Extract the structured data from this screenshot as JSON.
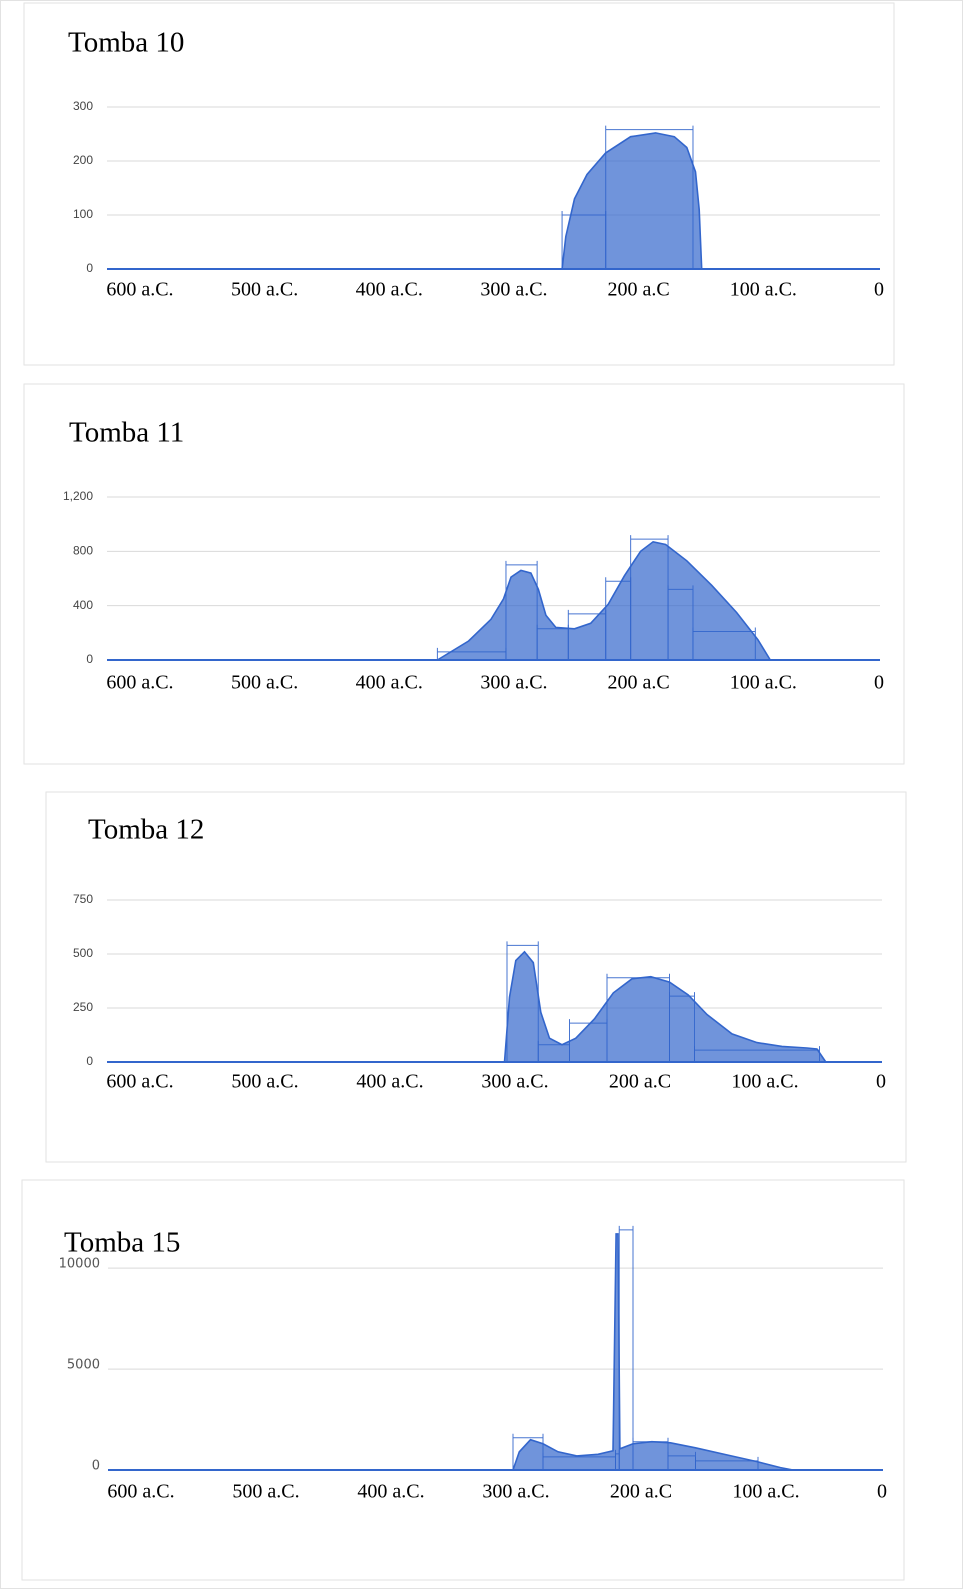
{
  "chart_data": [
    {
      "type": "area",
      "title": "Tomba 10",
      "xlim": [
        -620,
        0
      ],
      "xticks": [
        {
          "value": -600,
          "label": "600 a.C."
        },
        {
          "value": -500,
          "label": "500 a.C."
        },
        {
          "value": -400,
          "label": "400 a.C."
        },
        {
          "value": -300,
          "label": "300 a.C."
        },
        {
          "value": -200,
          "label": "200 a.C"
        },
        {
          "value": -100,
          "label": "100 a.C."
        },
        0
      ],
      "ylim": [
        0,
        300
      ],
      "yticks": [
        0,
        100,
        200,
        300
      ],
      "grid": true,
      "series": [
        {
          "color": "#3366cc",
          "x": [
            -255,
            -252,
            -245,
            -235,
            -220,
            -200,
            -180,
            -165,
            -155,
            -148,
            -145,
            -143
          ],
          "values": [
            0,
            60,
            130,
            175,
            215,
            245,
            252,
            245,
            225,
            180,
            110,
            0
          ]
        }
      ],
      "steps": {
        "bins": [
          -255,
          -220,
          -150
        ],
        "values": [
          100,
          258
        ]
      }
    },
    {
      "type": "area",
      "title": "Tomba 11",
      "xlim": [
        -620,
        0
      ],
      "xticks": [
        {
          "value": -600,
          "label": "600 a.C."
        },
        {
          "value": -500,
          "label": "500 a.C."
        },
        {
          "value": -400,
          "label": "400 a.C."
        },
        {
          "value": -300,
          "label": "300 a.C."
        },
        {
          "value": -200,
          "label": "200 a.C"
        },
        {
          "value": -100,
          "label": "100 a.C."
        },
        0
      ],
      "ylim": [
        0,
        1200
      ],
      "yticks": [
        0,
        400,
        800,
        {
          "value": 1200,
          "label": "1,200"
        }
      ],
      "grid": true,
      "series": [
        {
          "color": "#3366cc",
          "x": [
            -355,
            -330,
            -312,
            -302,
            -296,
            -288,
            -280,
            -274,
            -268,
            -260,
            -245,
            -232,
            -218,
            -205,
            -192,
            -182,
            -172,
            -155,
            -135,
            -115,
            -98,
            -88
          ],
          "values": [
            0,
            140,
            300,
            450,
            610,
            660,
            640,
            520,
            330,
            240,
            230,
            270,
            410,
            620,
            800,
            870,
            850,
            730,
            550,
            350,
            150,
            0
          ]
        }
      ],
      "steps": {
        "bins": [
          -355,
          -300,
          -275,
          -250,
          -220,
          -200,
          -170,
          -150,
          -100
        ],
        "values": [
          60,
          700,
          230,
          340,
          580,
          890,
          520,
          210
        ]
      }
    },
    {
      "type": "area",
      "title": "Tomba 12",
      "xlim": [
        -620,
        0
      ],
      "xticks": [
        {
          "value": -600,
          "label": "600 a.C."
        },
        {
          "value": -500,
          "label": "500 a.C."
        },
        {
          "value": -400,
          "label": "400 a.C."
        },
        {
          "value": -300,
          "label": "300 a.C."
        },
        {
          "value": -200,
          "label": "200 a.C"
        },
        {
          "value": -100,
          "label": "100 a.C."
        },
        0
      ],
      "ylim": [
        0,
        750
      ],
      "yticks": [
        0,
        250,
        500,
        750
      ],
      "grid": true,
      "series": [
        {
          "color": "#3366cc",
          "x": [
            -302,
            -298,
            -293,
            -286,
            -279,
            -273,
            -266,
            -256,
            -245,
            -230,
            -215,
            -200,
            -185,
            -170,
            -155,
            -140,
            -120,
            -100,
            -80,
            -60,
            -52,
            -45
          ],
          "values": [
            0,
            300,
            470,
            510,
            460,
            230,
            110,
            80,
            110,
            200,
            320,
            385,
            395,
            370,
            310,
            220,
            130,
            90,
            72,
            65,
            60,
            0
          ]
        }
      ],
      "steps": {
        "bins": [
          -300,
          -275,
          -250,
          -220,
          -170,
          -150,
          -50
        ],
        "values": [
          540,
          80,
          180,
          390,
          305,
          55
        ]
      }
    },
    {
      "type": "area",
      "title": "Tomba 15",
      "xlim": [
        -620,
        0
      ],
      "xticks": [
        {
          "value": -600,
          "label": "600 a.C."
        },
        {
          "value": -500,
          "label": "500 a.C."
        },
        {
          "value": -400,
          "label": "400 a.C."
        },
        {
          "value": -300,
          "label": "300 a.C."
        },
        {
          "value": -200,
          "label": "200 a.C"
        },
        {
          "value": -100,
          "label": "100 a.C."
        },
        0
      ],
      "ylim": [
        0,
        11000
      ],
      "yticks": [
        0,
        5000,
        10000
      ],
      "grid": true,
      "series": [
        {
          "color": "#3366cc",
          "x": [
            -296,
            -291,
            -282,
            -272,
            -260,
            -245,
            -228,
            -216,
            -213.5,
            -212,
            -210.5,
            -200,
            -185,
            -170,
            -150,
            -125,
            -100,
            -82,
            -72
          ],
          "values": [
            0,
            900,
            1500,
            1300,
            900,
            700,
            780,
            950,
            11700,
            11700,
            1050,
            1300,
            1400,
            1350,
            1100,
            750,
            400,
            120,
            0
          ]
        }
      ],
      "steps": {
        "bins": [
          -296,
          -272,
          -214,
          -211,
          -200,
          -172,
          -150,
          -100
        ],
        "values": [
          1600,
          650,
          800,
          11900,
          1400,
          700,
          450
        ]
      }
    }
  ]
}
